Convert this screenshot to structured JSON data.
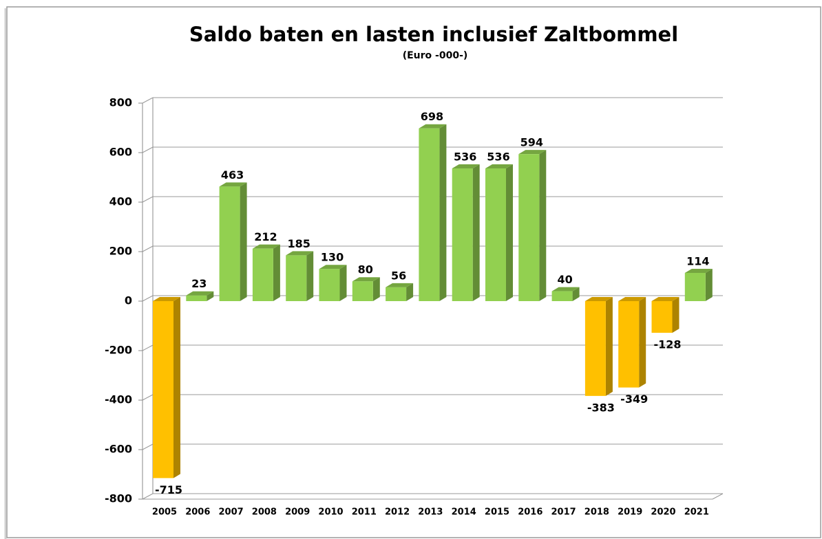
{
  "chart_data": {
    "type": "bar",
    "title": "Saldo baten en lasten inclusief Zaltbommel",
    "subtitle": "(Euro -000-)",
    "categories": [
      "2005",
      "2006",
      "2007",
      "2008",
      "2009",
      "2010",
      "2011",
      "2012",
      "2013",
      "2014",
      "2015",
      "2016",
      "2017",
      "2018",
      "2019",
      "2020",
      "2021"
    ],
    "values": [
      -715,
      23,
      463,
      212,
      185,
      130,
      80,
      56,
      698,
      536,
      536,
      594,
      40,
      -383,
      -349,
      -128,
      114
    ],
    "color": "#92d050",
    "negative_color": "#ffc000",
    "ylim": [
      -800,
      800
    ],
    "yticks": [
      -800,
      -600,
      -400,
      -200,
      0,
      200,
      400,
      600,
      800
    ],
    "grid": true
  }
}
